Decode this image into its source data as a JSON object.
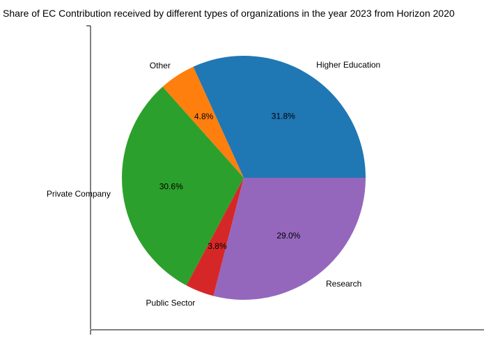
{
  "chart_data": {
    "type": "pie",
    "title": "Share of EC Contribution received by different types of organizations in the year 2023 from Horizon 2020",
    "slices": [
      {
        "label": "Higher Education",
        "value": 31.8,
        "pct_label": "31.8%",
        "color": "#1f77b4"
      },
      {
        "label": "Other",
        "value": 4.8,
        "pct_label": "4.8%",
        "color": "#ff7f0e"
      },
      {
        "label": "Private Company",
        "value": 30.6,
        "pct_label": "30.6%",
        "color": "#2ca02c"
      },
      {
        "label": "Public Sector",
        "value": 3.8,
        "pct_label": "3.8%",
        "color": "#d62728"
      },
      {
        "label": "Research",
        "value": 29.0,
        "pct_label": "29.0%",
        "color": "#9467bd"
      }
    ],
    "start_angle_deg": 0,
    "direction": "counterclockwise"
  }
}
